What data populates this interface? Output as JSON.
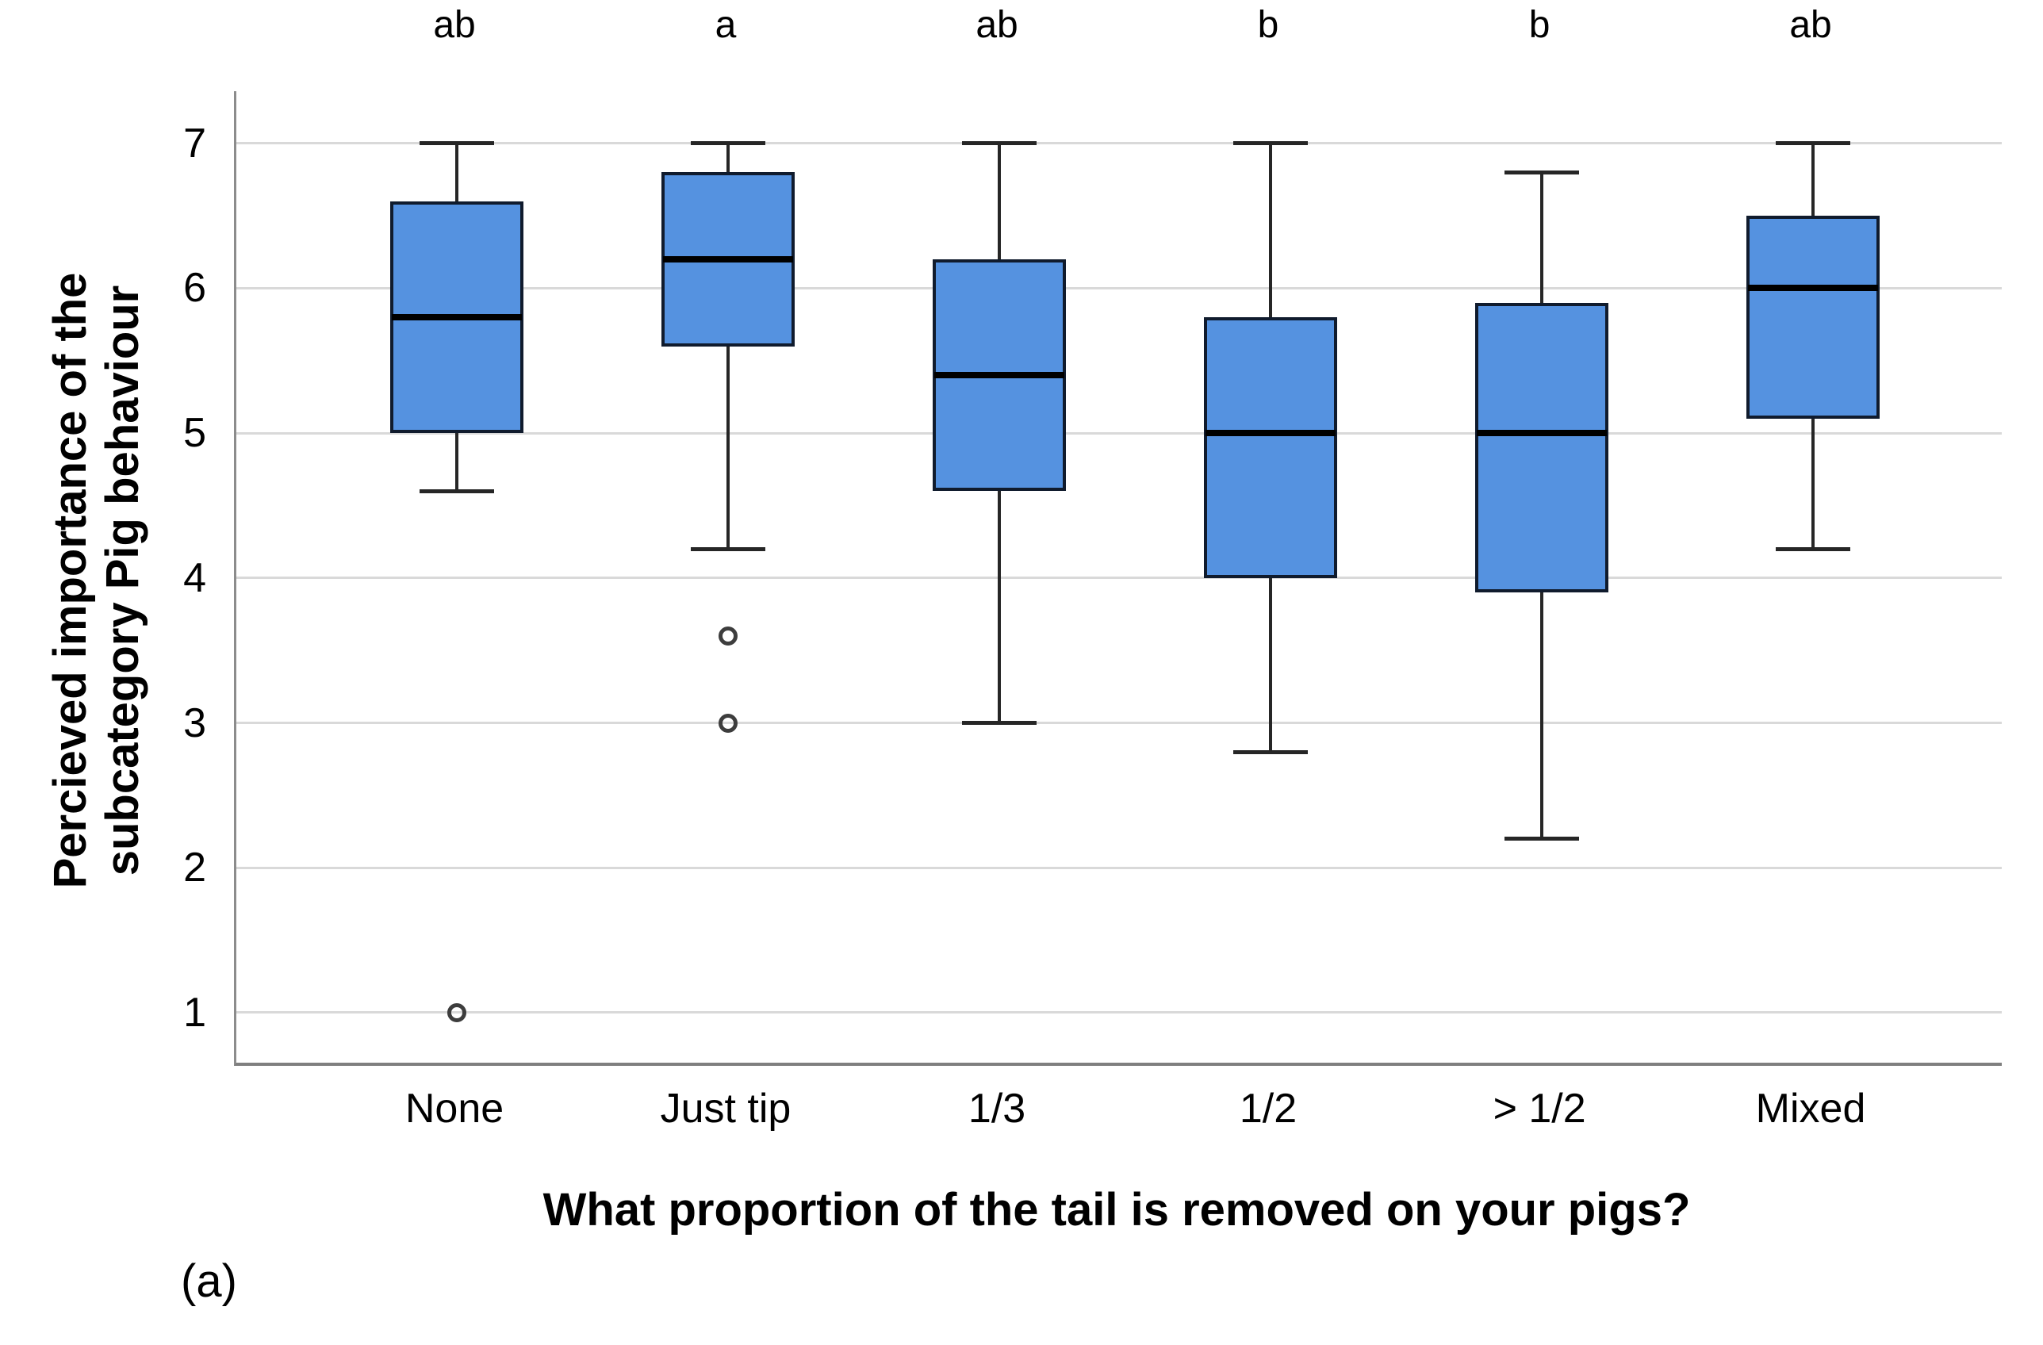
{
  "figure": {
    "caption": "(a)",
    "y_axis": {
      "label_line1": "Percieved importance of the",
      "label_line2": "subcategory Pig behaviour",
      "ticks": [
        7,
        6,
        5,
        4,
        3,
        2,
        1
      ]
    },
    "x_axis": {
      "label": "What proportion of the tail is removed on your pigs?"
    }
  },
  "chart_data": {
    "type": "boxplot",
    "title": "",
    "xlabel": "What proportion of the tail is removed on your pigs?",
    "ylabel": "Percieved importance of the subcategory Pig behaviour",
    "ylim": [
      1,
      7
    ],
    "grid": "horizontal",
    "categories": [
      "None",
      "Just tip",
      "1/3",
      "1/2",
      "> 1/2",
      "Mixed"
    ],
    "significance_letters": [
      "ab",
      "a",
      "ab",
      "b",
      "b",
      "ab"
    ],
    "series": [
      {
        "category": "None",
        "whisker_low": 4.6,
        "q1": 5.0,
        "median": 5.8,
        "q3": 6.6,
        "whisker_high": 7.0,
        "outliers": [
          1.0
        ]
      },
      {
        "category": "Just tip",
        "whisker_low": 4.2,
        "q1": 5.6,
        "median": 6.2,
        "q3": 6.8,
        "whisker_high": 7.0,
        "outliers": [
          3.6,
          3.0
        ]
      },
      {
        "category": "1/3",
        "whisker_low": 3.0,
        "q1": 4.6,
        "median": 5.4,
        "q3": 6.2,
        "whisker_high": 7.0,
        "outliers": []
      },
      {
        "category": "1/2",
        "whisker_low": 2.8,
        "q1": 4.0,
        "median": 5.0,
        "q3": 5.8,
        "whisker_high": 7.0,
        "outliers": []
      },
      {
        "category": "> 1/2",
        "whisker_low": 2.2,
        "q1": 3.9,
        "median": 5.0,
        "q3": 5.9,
        "whisker_high": 6.8,
        "outliers": []
      },
      {
        "category": "Mixed",
        "whisker_low": 4.2,
        "q1": 5.1,
        "median": 6.0,
        "q3": 6.5,
        "whisker_high": 7.0,
        "outliers": []
      }
    ],
    "colors": {
      "box_fill": "#5592e0",
      "box_border": "#101b2d",
      "median": "#000000",
      "whisker": "#262626",
      "outlier": "#3d3d3d",
      "gridline": "#d9d9d9",
      "axis": "#8c8c8c",
      "text": "#000000"
    }
  }
}
